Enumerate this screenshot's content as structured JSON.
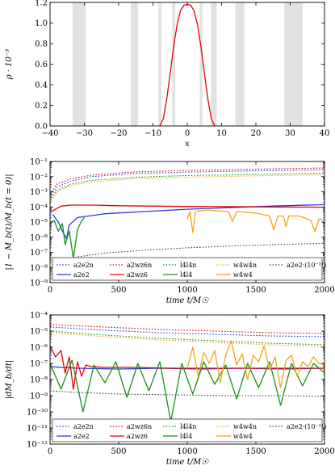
{
  "chart_data": [
    {
      "type": "line",
      "xlabel": "x",
      "ylabel": "ρ · 10⁻³",
      "xlim": [
        -40,
        40
      ],
      "ylim": [
        0.0,
        1.3
      ],
      "xticks": [
        "−40",
        "−30",
        "−20",
        "−10",
        "0",
        "10",
        "20",
        "30",
        "40"
      ],
      "yticks": [
        "0.0",
        "0.2",
        "0.4",
        "0.6",
        "0.8",
        "1.0",
        "1.2"
      ],
      "shaded_x_bands": [
        [
          -33.4,
          -29.6
        ],
        [
          -16.5,
          -14.3
        ],
        [
          -8.4,
          -7.5
        ],
        [
          -4.4,
          -3.5
        ],
        [
          3.6,
          4.4
        ],
        [
          6.9,
          8.6
        ],
        [
          14.0,
          16.6
        ],
        [
          28.3,
          33.6
        ]
      ],
      "series": [
        {
          "color": "#e8000b",
          "x": [
            -8,
            -7,
            -6,
            -5,
            -4,
            -3,
            -2,
            -1,
            0,
            1,
            2,
            3,
            4,
            5,
            6,
            7,
            8
          ],
          "y": [
            0.0,
            0.076,
            0.28,
            0.55,
            0.83,
            1.06,
            1.21,
            1.27,
            1.28,
            1.27,
            1.21,
            1.06,
            0.83,
            0.55,
            0.28,
            0.076,
            0.0
          ]
        }
      ]
    },
    {
      "type": "line",
      "scale": "log",
      "xlabel": "time t/M☉",
      "ylabel": "|1 − M_b(t)/M_b(t = 0)|",
      "xlim": [
        0,
        2000
      ],
      "ylim_exp": [
        -9,
        -1
      ],
      "xticks": [
        "0",
        "500",
        "1000",
        "1500",
        "2000"
      ],
      "yticks": [
        "10⁻⁹",
        "10⁻⁸",
        "10⁻⁷",
        "10⁻⁶",
        "10⁻⁵",
        "10⁻⁴",
        "10⁻³",
        "10⁻²",
        "10⁻¹"
      ],
      "legend": [
        "a2e2n",
        "a2wz6n",
        "l4l4n",
        "w4w4n",
        "a2e2·(10⁻¹¹)",
        "a2e2",
        "a2wz6",
        "l4l4",
        "w4w4"
      ],
      "legend_position": "bottom",
      "series": [
        {
          "name": "a2e2n",
          "color": "#1f3fd6",
          "style": "dotted",
          "x": [
            10,
            50,
            150,
            300,
            600,
            1000,
            1500,
            2000
          ],
          "y": [
            -3.2,
            -2.7,
            -2.3,
            -2.0,
            -1.8,
            -1.7,
            -1.62,
            -1.55
          ]
        },
        {
          "name": "a2wz6n",
          "color": "#e8000b",
          "style": "dotted",
          "x": [
            10,
            50,
            150,
            300,
            600,
            1000,
            1500,
            2000
          ],
          "y": [
            -3.0,
            -2.5,
            -2.15,
            -1.9,
            -1.7,
            -1.58,
            -1.5,
            -1.43
          ]
        },
        {
          "name": "l4l4n",
          "color": "#1a8f1a",
          "style": "dotted",
          "x": [
            10,
            50,
            150,
            300,
            600,
            1000,
            1500,
            2000
          ],
          "y": [
            -3.4,
            -2.9,
            -2.5,
            -2.25,
            -2.05,
            -1.93,
            -1.85,
            -1.78
          ]
        },
        {
          "name": "w4w4n",
          "color": "#f5a31a",
          "style": "dotted",
          "x": [
            10,
            50,
            150,
            300,
            600,
            1000,
            1500,
            2000
          ],
          "y": [
            -3.6,
            -3.0,
            -2.6,
            -2.35,
            -2.15,
            -2.03,
            -1.95,
            -1.88
          ]
        },
        {
          "name": "a2e2·(10⁻¹¹)",
          "color": "#444444",
          "style": "dotted",
          "x": [
            30,
            100,
            200,
            400,
            700,
            1000,
            1400,
            2000
          ],
          "y": [
            -8.0,
            -7.6,
            -7.3,
            -7.05,
            -6.85,
            -6.7,
            -6.55,
            -6.4
          ]
        },
        {
          "name": "a2e2",
          "color": "#1f3fd6",
          "style": "solid",
          "x": [
            20,
            60,
            90,
            120,
            140,
            200,
            400,
            700,
            1000,
            1300,
            1600,
            2000
          ],
          "y": [
            -4.5,
            -5.0,
            -5.6,
            -6.1,
            -5.2,
            -4.7,
            -4.45,
            -4.3,
            -4.15,
            -4.05,
            -3.95,
            -3.85
          ]
        },
        {
          "name": "a2wz6",
          "color": "#e8000b",
          "style": "solid",
          "x": [
            10,
            80,
            150,
            300,
            500,
            800,
            1000,
            1300,
            1600,
            2000
          ],
          "y": [
            -4.3,
            -3.95,
            -3.88,
            -3.88,
            -3.92,
            -3.95,
            -3.97,
            -3.98,
            -4.0,
            -4.02
          ]
        },
        {
          "name": "l4l4",
          "color": "#1a8f1a",
          "style": "solid",
          "x": [
            10,
            30,
            60,
            90,
            110,
            140,
            170,
            200,
            225,
            250
          ],
          "y": [
            -5.0,
            -4.9,
            -5.6,
            -5.1,
            -6.5,
            -5.6,
            -7.4,
            -5.5,
            -5.0,
            -4.7
          ]
        },
        {
          "name": "w4w4",
          "color": "#f5a31a",
          "style": "solid",
          "x": [
            1000,
            1020,
            1040,
            1060,
            1150,
            1300,
            1330,
            1360,
            1500,
            1600,
            1630,
            1660,
            1700,
            1720,
            1740,
            1820,
            1900,
            1930,
            1960,
            2000
          ],
          "y": [
            -4.8,
            -4.3,
            -5.7,
            -4.3,
            -4.2,
            -4.3,
            -4.95,
            -4.3,
            -4.4,
            -4.6,
            -5.5,
            -4.6,
            -4.6,
            -5.3,
            -4.6,
            -4.6,
            -4.9,
            -5.6,
            -4.8,
            -4.85
          ]
        }
      ]
    },
    {
      "type": "line",
      "scale": "log",
      "xlabel": "time t/M☉",
      "ylabel": "|dM_b/dt|",
      "xlim": [
        0,
        2000
      ],
      "ylim_exp": [
        -12,
        -4
      ],
      "xticks": [
        "0",
        "500",
        "1000",
        "1500",
        "2000"
      ],
      "yticks": [
        "10⁻¹²",
        "10⁻¹¹",
        "10⁻¹⁰",
        "10⁻⁹",
        "10⁻⁸",
        "10⁻⁷",
        "10⁻⁶",
        "10⁻⁵",
        "10⁻⁴"
      ],
      "legend": [
        "a2e2n",
        "a2wz6n",
        "l4l4n",
        "w4w4n",
        "a2e2·(10⁻¹¹)",
        "a2e2",
        "a2wz6",
        "l4l4",
        "w4w4"
      ],
      "legend_position": "bottom",
      "series": [
        {
          "name": "a2e2n",
          "color": "#1f3fd6",
          "style": "dotted",
          "x": [
            0,
            400,
            800,
            1200,
            1600,
            2000
          ],
          "y": [
            -4.75,
            -4.95,
            -5.1,
            -5.2,
            -5.3,
            -5.35
          ]
        },
        {
          "name": "a2wz6n",
          "color": "#e8000b",
          "style": "dotted",
          "x": [
            0,
            400,
            800,
            1200,
            1600,
            2000
          ],
          "y": [
            -4.6,
            -4.75,
            -4.9,
            -5.0,
            -5.1,
            -5.15
          ]
        },
        {
          "name": "l4l4n",
          "color": "#1a8f1a",
          "style": "dotted",
          "x": [
            0,
            400,
            800,
            1200,
            1600,
            2000
          ],
          "y": [
            -5.0,
            -5.25,
            -5.45,
            -5.6,
            -5.75,
            -5.85
          ]
        },
        {
          "name": "w4w4n",
          "color": "#f5a31a",
          "style": "dotted",
          "x": [
            0,
            400,
            800,
            1200,
            1600,
            2000
          ],
          "y": [
            -5.1,
            -5.35,
            -5.55,
            -5.7,
            -5.85,
            -5.95
          ]
        },
        {
          "name": "a2e2·(10⁻¹¹)",
          "color": "#444444",
          "style": "dotted",
          "x": [
            0,
            200,
            500,
            900,
            1300,
            1700,
            2000
          ],
          "y": [
            -8.7,
            -8.8,
            -8.9,
            -8.95,
            -9.0,
            -9.0,
            -9.05
          ]
        },
        {
          "name": "a2e2",
          "color": "#1f3fd6",
          "style": "solid",
          "x": [
            0,
            200,
            500,
            800,
            1100,
            1400,
            1700,
            2000
          ],
          "y": [
            -7.2,
            -7.3,
            -7.35,
            -7.3,
            -7.35,
            -7.3,
            -7.35,
            -7.3
          ]
        },
        {
          "name": "a2wz6",
          "color": "#e8000b",
          "style": "solid",
          "x": [
            0,
            40,
            80,
            110,
            140,
            170,
            200,
            230,
            260,
            300,
            400,
            600,
            900,
            1200,
            1500,
            1800,
            2000
          ],
          "y": [
            -5.9,
            -6.6,
            -6.2,
            -7.6,
            -6.6,
            -8.6,
            -6.9,
            -7.8,
            -7.1,
            -7.2,
            -7.25,
            -7.25,
            -7.3,
            -7.3,
            -7.3,
            -7.3,
            -7.3
          ]
        },
        {
          "name": "l4l4",
          "color": "#1a8f1a",
          "style": "solid",
          "x": [
            0,
            80,
            160,
            240,
            320,
            400,
            480,
            560,
            640,
            720,
            800,
            880,
            960,
            1040,
            1120,
            1200,
            1280,
            1360,
            1440,
            1520,
            1600,
            1680,
            1760,
            1840,
            1920,
            2000
          ],
          "y": [
            -7.0,
            -8.6,
            -6.8,
            -10.0,
            -7.1,
            -8.2,
            -6.9,
            -9.1,
            -7.0,
            -8.7,
            -6.9,
            -10.6,
            -7.0,
            -8.9,
            -6.9,
            -8.3,
            -7.1,
            -9.2,
            -7.0,
            -8.5,
            -6.9,
            -9.6,
            -7.0,
            -8.4,
            -7.0,
            -7.6
          ]
        },
        {
          "name": "w4w4",
          "color": "#f5a31a",
          "style": "solid",
          "x": [
            1000,
            1040,
            1080,
            1120,
            1160,
            1200,
            1240,
            1280,
            1320,
            1360,
            1400,
            1440,
            1480,
            1520,
            1560,
            1600,
            1640,
            1680,
            1720,
            1760,
            1800,
            1840,
            1880,
            1920,
            1960,
            2000
          ],
          "y": [
            -7.3,
            -6.0,
            -7.8,
            -6.3,
            -7.0,
            -6.2,
            -8.2,
            -6.5,
            -5.6,
            -7.1,
            -6.4,
            -8.0,
            -6.5,
            -6.9,
            -5.9,
            -7.4,
            -6.6,
            -8.5,
            -6.8,
            -6.5,
            -7.8,
            -6.9,
            -7.2,
            -6.6,
            -7.0,
            -7.1
          ]
        }
      ]
    }
  ]
}
